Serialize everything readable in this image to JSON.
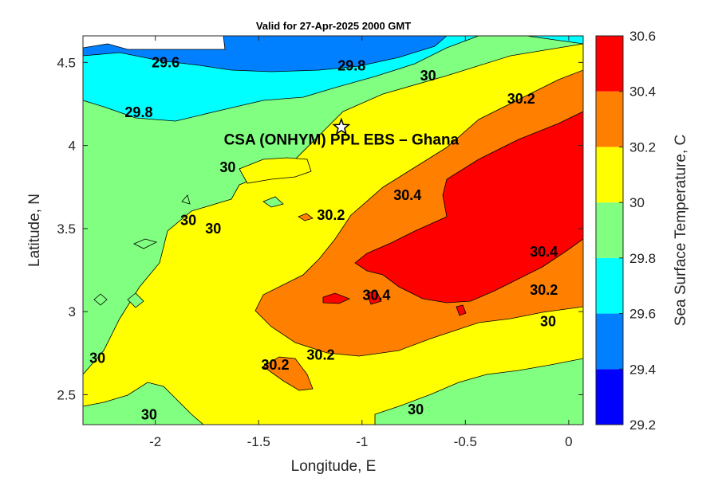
{
  "chart_data": {
    "type": "contour",
    "title": "Valid for 27-Apr-2025 2000 GMT",
    "xlabel": "Longitude, E",
    "ylabel": "Latitude, N",
    "colorbar_label": "Sea Surface Temperature, C",
    "xlim": [
      -2.35,
      0.07
    ],
    "ylim": [
      2.32,
      4.66
    ],
    "x_ticks": [
      -2,
      -1.5,
      -1,
      -0.5,
      0
    ],
    "x_tick_labels": [
      "-2",
      "-1.5",
      "-1",
      "-0.5",
      "0"
    ],
    "y_ticks": [
      2.5,
      3,
      3.5,
      4,
      4.5
    ],
    "y_tick_labels": [
      "2.5",
      "3",
      "3.5",
      "4",
      "4.5"
    ],
    "levels": [
      29.2,
      29.4,
      29.6,
      29.8,
      30.0,
      30.2,
      30.4,
      30.6
    ],
    "level_labels": [
      "29.2",
      "29.4",
      "29.6",
      "29.8",
      "30",
      "30.2",
      "30.4",
      "30.6"
    ],
    "level_colors": [
      "#0000ff",
      "#0080ff",
      "#00ffff",
      "#80ff80",
      "#ffff00",
      "#ff8000",
      "#ff0000"
    ],
    "site": {
      "name": "CSA (ONHYM) PPL EBS  – Ghana",
      "lon": -1.1,
      "lat": 4.11
    },
    "contour_labels": [
      {
        "text": "29.6",
        "lon": -1.95,
        "lat": 4.5
      },
      {
        "text": "29.8",
        "lon": -1.05,
        "lat": 4.48
      },
      {
        "text": "30",
        "lon": -0.68,
        "lat": 4.42
      },
      {
        "text": "30.2",
        "lon": -0.23,
        "lat": 4.28
      },
      {
        "text": "29.8",
        "lon": -2.08,
        "lat": 4.2
      },
      {
        "text": "30",
        "lon": -1.65,
        "lat": 3.87
      },
      {
        "text": "30.2",
        "lon": -1.15,
        "lat": 3.58
      },
      {
        "text": "30.4",
        "lon": -0.78,
        "lat": 3.7
      },
      {
        "text": "30",
        "lon": -1.84,
        "lat": 3.55
      },
      {
        "text": "30",
        "lon": -1.72,
        "lat": 3.5
      },
      {
        "text": "30.4",
        "lon": -0.12,
        "lat": 3.36
      },
      {
        "text": "30.4",
        "lon": -0.93,
        "lat": 3.1
      },
      {
        "text": "30.2",
        "lon": -0.12,
        "lat": 3.13
      },
      {
        "text": "30",
        "lon": -0.1,
        "lat": 2.94
      },
      {
        "text": "30.2",
        "lon": -1.2,
        "lat": 2.74
      },
      {
        "text": "30.2",
        "lon": -1.42,
        "lat": 2.68
      },
      {
        "text": "30",
        "lon": -2.28,
        "lat": 2.72
      },
      {
        "text": "30",
        "lon": -2.03,
        "lat": 2.38
      },
      {
        "text": "30",
        "lon": -0.74,
        "lat": 2.41
      }
    ]
  }
}
